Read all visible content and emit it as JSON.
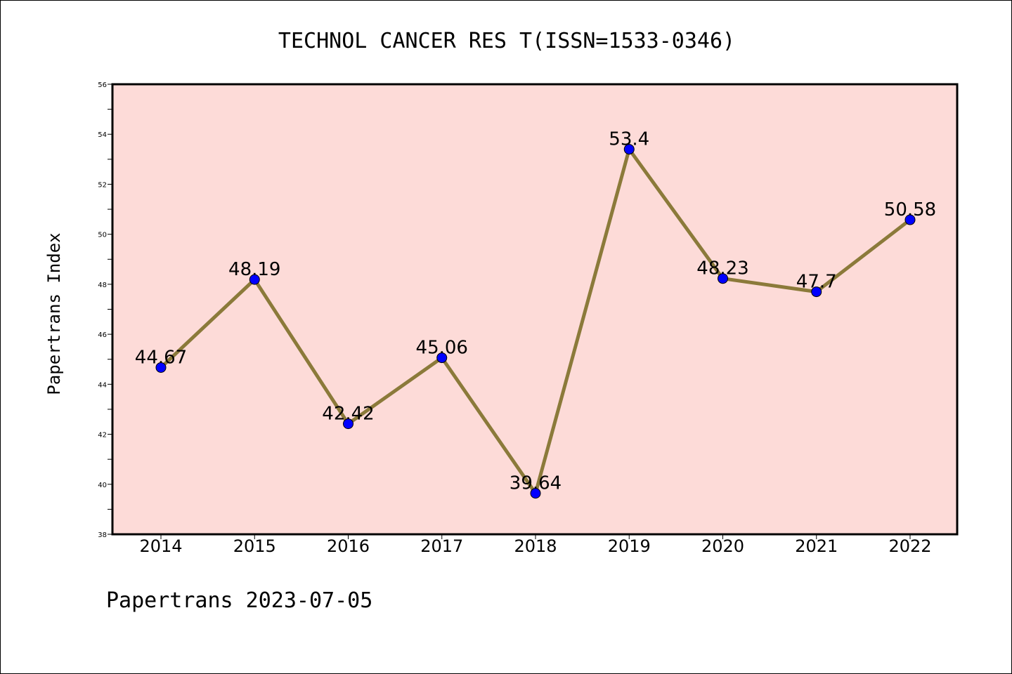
{
  "chart_data": {
    "type": "line",
    "title": "TECHNOL CANCER RES T(ISSN=1533-0346)",
    "xlabel": "",
    "ylabel": "Papertrans Index",
    "categories": [
      "2014",
      "2015",
      "2016",
      "2017",
      "2018",
      "2019",
      "2020",
      "2021",
      "2022"
    ],
    "series": [
      {
        "values": [
          44.67,
          48.19,
          42.42,
          45.06,
          39.64,
          53.4,
          48.23,
          47.7,
          50.58
        ],
        "data_labels": [
          "44.67",
          "48.19",
          "42.42",
          "45.06",
          "39.64",
          "53.4",
          "48.23",
          "47.7",
          "50.58"
        ]
      }
    ],
    "ylim": [
      38,
      56
    ],
    "yticks": [
      38,
      40,
      42,
      44,
      46,
      48,
      50,
      52,
      54,
      56
    ],
    "grid": false,
    "colors": {
      "line": "#8b7a3a",
      "marker": "#0000ff",
      "plot_background": "#fddbd8"
    }
  },
  "footer": {
    "text": "Papertrans 2023-07-05"
  }
}
